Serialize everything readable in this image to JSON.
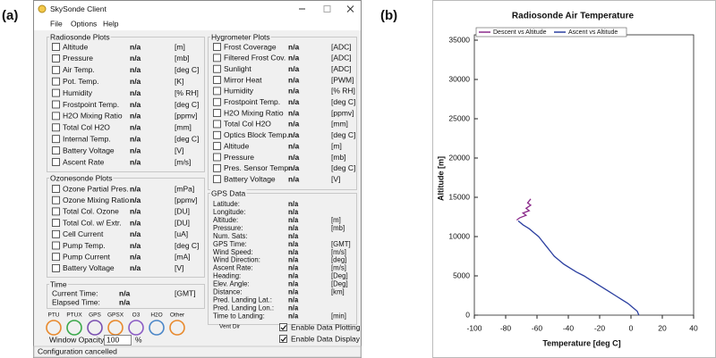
{
  "labels": [
    "(a)",
    "(b)"
  ],
  "window": {
    "title": "SkySonde Client",
    "menu": [
      "File",
      "Options",
      "Help"
    ],
    "radiosonde": {
      "title": "Radiosonde Plots",
      "rows": [
        {
          "label": "Altitude",
          "value": "n/a",
          "unit": "[m]"
        },
        {
          "label": "Pressure",
          "value": "n/a",
          "unit": "[mb]"
        },
        {
          "label": "Air Temp.",
          "value": "n/a",
          "unit": "[deg C]"
        },
        {
          "label": "Pot. Temp.",
          "value": "n/a",
          "unit": "[K]"
        },
        {
          "label": "Humidity",
          "value": "n/a",
          "unit": "[% RH]"
        },
        {
          "label": "Frostpoint Temp.",
          "value": "n/a",
          "unit": "[deg C]"
        },
        {
          "label": "H2O Mixing Ratio",
          "value": "n/a",
          "unit": "[ppmv]"
        },
        {
          "label": "Total Col H2O",
          "value": "n/a",
          "unit": "[mm]"
        },
        {
          "label": "Internal Temp.",
          "value": "n/a",
          "unit": "[deg C]"
        },
        {
          "label": "Battery Voltage",
          "value": "n/a",
          "unit": "[V]"
        },
        {
          "label": "Ascent Rate",
          "value": "n/a",
          "unit": "[m/s]"
        }
      ]
    },
    "hygrometer": {
      "title": "Hygrometer Plots",
      "rows": [
        {
          "label": "Frost Coverage",
          "value": "n/a",
          "unit": "[ADC]"
        },
        {
          "label": "Filtered Frost Cov.",
          "value": "n/a",
          "unit": "[ADC]"
        },
        {
          "label": "Sunlight",
          "value": "n/a",
          "unit": "[ADC]"
        },
        {
          "label": "Mirror Heat",
          "value": "n/a",
          "unit": "[PWM]"
        },
        {
          "label": "Humidity",
          "value": "n/a",
          "unit": "[% RH]"
        },
        {
          "label": "Frostpoint Temp.",
          "value": "n/a",
          "unit": "[deg C]"
        },
        {
          "label": "H2O Mixing Ratio",
          "value": "n/a",
          "unit": "[ppmv]"
        },
        {
          "label": "Total Col H2O",
          "value": "n/a",
          "unit": "[mm]"
        },
        {
          "label": "Optics Block Temp.",
          "value": "n/a",
          "unit": "[deg C]"
        },
        {
          "label": "Altitude",
          "value": "n/a",
          "unit": "[m]"
        },
        {
          "label": "Pressure",
          "value": "n/a",
          "unit": "[mb]"
        },
        {
          "label": "Pres. Sensor Temp.",
          "value": "n/a",
          "unit": "[deg C]"
        },
        {
          "label": "Battery Voltage",
          "value": "n/a",
          "unit": "[V]"
        }
      ]
    },
    "ozonesonde": {
      "title": "Ozonesonde Plots",
      "rows": [
        {
          "label": "Ozone Partial Pres.",
          "value": "n/a",
          "unit": "[mPa]"
        },
        {
          "label": "Ozone Mixing Ratio",
          "value": "n/a",
          "unit": "[ppmv]"
        },
        {
          "label": "Total Col. Ozone",
          "value": "n/a",
          "unit": "[DU]"
        },
        {
          "label": "Total Col. w/ Extr.",
          "value": "n/a",
          "unit": "[DU]"
        },
        {
          "label": "Cell Current",
          "value": "n/a",
          "unit": "[uA]"
        },
        {
          "label": "Pump Temp.",
          "value": "n/a",
          "unit": "[deg C]"
        },
        {
          "label": "Pump Current",
          "value": "n/a",
          "unit": "[mA]"
        },
        {
          "label": "Battery Voltage",
          "value": "n/a",
          "unit": "[V]"
        }
      ]
    },
    "gps": {
      "title": "GPS Data",
      "rows": [
        {
          "label": "Latitude:",
          "value": "n/a"
        },
        {
          "label": "Longitude:",
          "value": "n/a"
        },
        {
          "label": "Altitude:",
          "value": "n/a",
          "unit": "[m]"
        },
        {
          "label": "Pressure:",
          "value": "n/a",
          "unit": "[mb]"
        },
        {
          "label": "Num. Sats:",
          "value": "n/a"
        },
        {
          "label": "GPS Time:",
          "value": "n/a",
          "unit": "[GMT]"
        },
        {
          "label": "Wind Speed:",
          "value": "n/a",
          "unit": "[m/s]"
        },
        {
          "label": "Wind Direction:",
          "value": "n/a",
          "unit": "[deg]"
        },
        {
          "label": "Ascent Rate:",
          "value": "n/a",
          "unit": "[m/s]"
        },
        {
          "label": "Heading:",
          "value": "n/a",
          "unit": "[Deg]"
        },
        {
          "label": "Elev. Angle:",
          "value": "n/a",
          "unit": "[Deg]"
        },
        {
          "label": "Distance:",
          "value": "n/a",
          "unit": "[km]"
        },
        {
          "label": "Pred. Landing Lat.:",
          "value": "n/a"
        },
        {
          "label": "Pred. Landing Lon.:",
          "value": "n/a"
        },
        {
          "label": "Time to Landing:",
          "value": "n/a",
          "unit": "[min]"
        }
      ]
    },
    "time": {
      "title": "Time",
      "rows": [
        {
          "label": "Current Time:",
          "value": "n/a",
          "unit": "[GMT]"
        },
        {
          "label": "Elapsed Time:",
          "value": "n/a"
        }
      ]
    },
    "indicators": [
      {
        "label": "PTU",
        "color": "#e8892c"
      },
      {
        "label": "PTUX",
        "color": "#3aa84a"
      },
      {
        "label": "GPS",
        "color": "#7a4fb0"
      },
      {
        "label": "GPSX",
        "color": "#e8892c"
      },
      {
        "label": "O3",
        "color": "#8a5bc4"
      },
      {
        "label": "H2O",
        "color": "#4a86c8"
      },
      {
        "label": "Other",
        "color": "#e8892c"
      }
    ],
    "vent": "Vent Dir",
    "checkboxes": [
      {
        "label": "Enable Data Plotting",
        "checked": true
      },
      {
        "label": "Enable Data Display",
        "checked": true
      }
    ],
    "opacity": {
      "label": "Window Opacity:",
      "value": "100",
      "unit": "%"
    },
    "status": "Configuration cancelled"
  },
  "chart_data": {
    "type": "line",
    "title": "Radiosonde Air Temperature",
    "x_label": "Temperature [deg C]",
    "y_label": "Altitude [m]",
    "xlim": [
      -100,
      40
    ],
    "xticks": [
      -100,
      -80,
      -60,
      -40,
      -20,
      0,
      20,
      40
    ],
    "ylim": [
      0,
      35000
    ],
    "yticks": [
      0,
      5000,
      10000,
      15000,
      20000,
      25000,
      30000,
      35000
    ],
    "legend": "top-left",
    "series": [
      {
        "name": "Descent vs Altitude",
        "color": "#8b2a8b",
        "x": [
          -64,
          -66,
          -64,
          -67,
          -65,
          -69,
          -67,
          -71,
          -73
        ],
        "values": [
          14800,
          14300,
          14000,
          13600,
          13300,
          13000,
          12700,
          12400,
          12100
        ]
      },
      {
        "name": "Ascent vs Altitude",
        "color": "#2b3fa0",
        "x": [
          5,
          4,
          1,
          -2,
          -6,
          -10,
          -14,
          -18,
          -22,
          -26,
          -30,
          -35,
          -39,
          -43,
          -46,
          -49,
          -51,
          -53,
          -55,
          -57,
          -59,
          -62,
          -65,
          -69,
          -72
        ],
        "values": [
          0,
          500,
          1000,
          1500,
          2000,
          2500,
          3000,
          3500,
          4000,
          4500,
          5000,
          5500,
          6000,
          6500,
          7000,
          7500,
          8000,
          8500,
          9000,
          9500,
          10000,
          10500,
          11000,
          11500,
          12000
        ]
      }
    ]
  }
}
